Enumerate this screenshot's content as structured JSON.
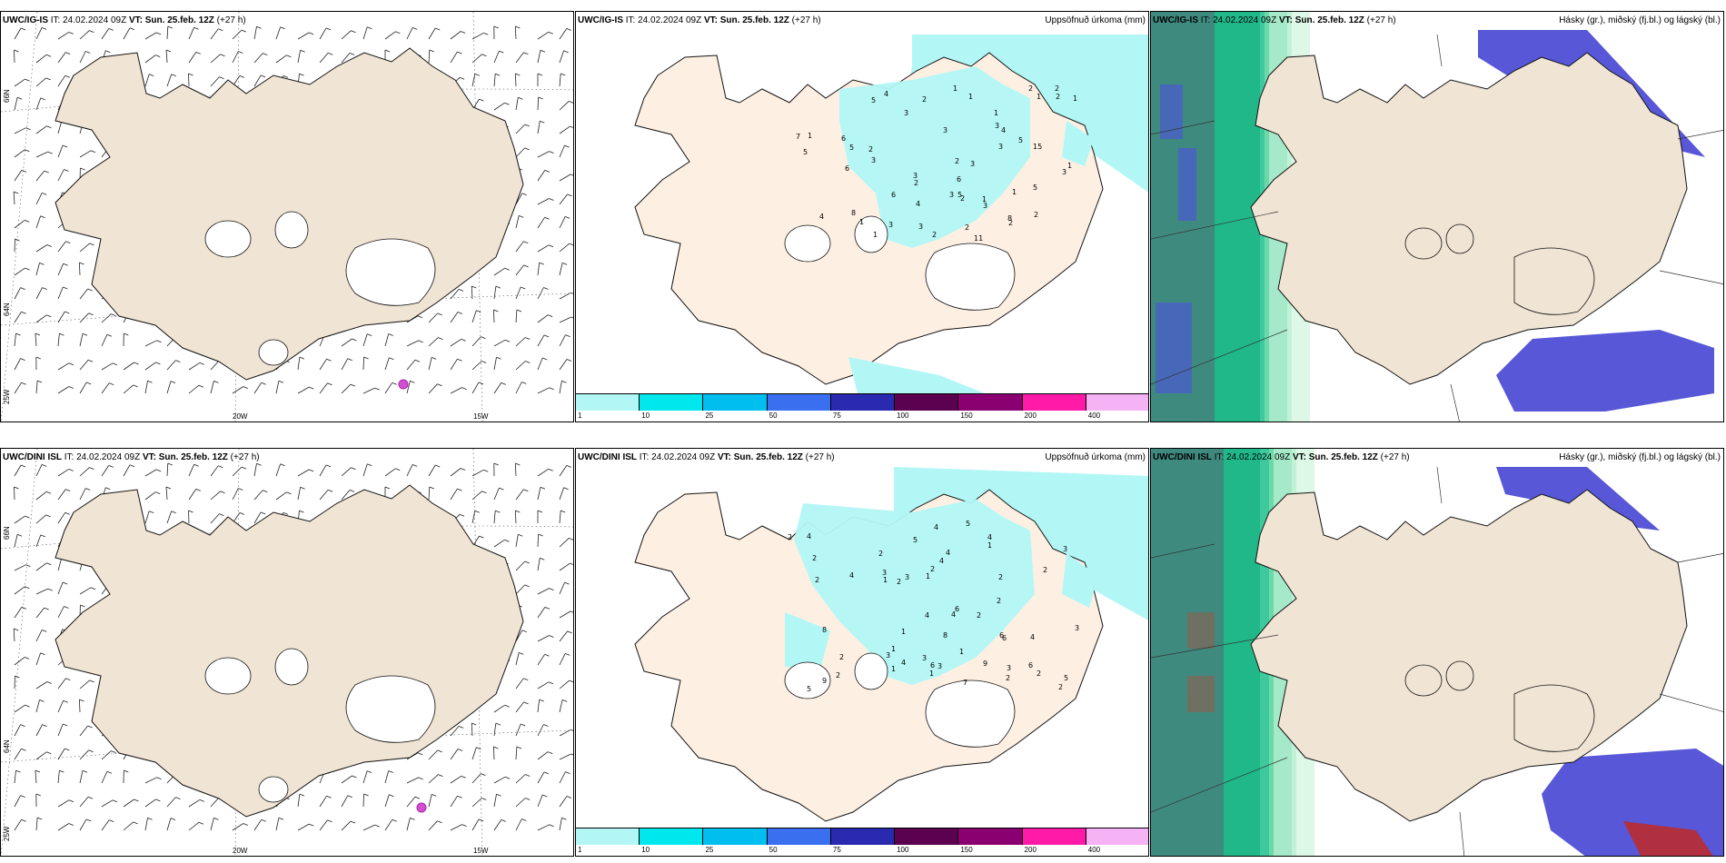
{
  "rows": [
    {
      "model": "UWC/IG-IS",
      "it_label": "IT:",
      "it_value": "24.02.2024 09Z",
      "vt_label": "VT:",
      "vt_value": "Sun. 25.feb. 12Z",
      "lead": "(+27 h)",
      "precip_title": "Uppsöfnuð úrkoma (mm)",
      "cloud_title": "Hásky (gr.), miðský (fj.bl.) og lágský (bl.)",
      "lat_labels": [
        "66N",
        "64N",
        "25W"
      ],
      "lon_labels": [
        "20W",
        "15W"
      ]
    },
    {
      "model": "UWC/DINI ISL",
      "it_label": "IT:",
      "it_value": "24.02.2024 09Z",
      "vt_label": "VT:",
      "vt_value": "Sun. 25.feb. 12Z",
      "lead": "(+27 h)",
      "precip_title": "Uppsöfnuð úrkoma (mm)",
      "cloud_title": "Hásky (gr.), miðský (fj.bl.) og lágský (bl.)",
      "lat_labels": [
        "66N",
        "64N",
        "25W"
      ],
      "lon_labels": [
        "20W",
        "15W"
      ]
    }
  ],
  "cloud_panel_model": [
    "UWC/IG-IS",
    "UWC/DINI ISL"
  ],
  "colorbar": {
    "labels": [
      "1",
      "10",
      "25",
      "50",
      "75",
      "100",
      "150",
      "200",
      "400"
    ],
    "colors": [
      "#b2f7f5",
      "#00e8ee",
      "#00bff0",
      "#3a6ff0",
      "#2a2ab0",
      "#5c0050",
      "#8a0070",
      "#ff1aa8",
      "#f5b2f5"
    ]
  },
  "colors": {
    "land": "#f0e4d4",
    "land_precip": "#fdf0e3",
    "snow_precip": "#b2f7f5",
    "cloud_high": "#3cbf9a",
    "cloud_mid": "#8a8a8a",
    "cloud_low": "#3a3ad0"
  },
  "precip_numbers_top": [
    "11",
    "5",
    "8",
    "6",
    "5",
    "2",
    "3",
    "3",
    "2",
    "1",
    "4",
    "7",
    "3",
    "5",
    "3",
    "2",
    "5",
    "1",
    "1",
    "15",
    "8",
    "2",
    "1",
    "2",
    "3",
    "4",
    "6",
    "5",
    "2",
    "3",
    "3",
    "2",
    "1",
    "3",
    "4",
    "3",
    "1",
    "1",
    "1",
    "1",
    "2",
    "2",
    "1",
    "2",
    "1",
    "5",
    "3",
    "4",
    "6",
    "2",
    "6",
    "3",
    "2",
    "3"
  ],
  "precip_numbers_bottom": [
    "9",
    "4",
    "6",
    "8",
    "5",
    "5",
    "6",
    "4",
    "3",
    "3",
    "2",
    "1",
    "4",
    "4",
    "9",
    "3",
    "6",
    "8",
    "4",
    "3",
    "2",
    "2",
    "1",
    "2",
    "6",
    "1",
    "3",
    "4",
    "2",
    "1",
    "2",
    "1",
    "4",
    "5",
    "4",
    "7",
    "6",
    "2",
    "2",
    "3",
    "4",
    "1",
    "2",
    "1",
    "2",
    "2",
    "2",
    "3",
    "3",
    "5",
    "2",
    "1",
    "4",
    "2",
    "2"
  ]
}
